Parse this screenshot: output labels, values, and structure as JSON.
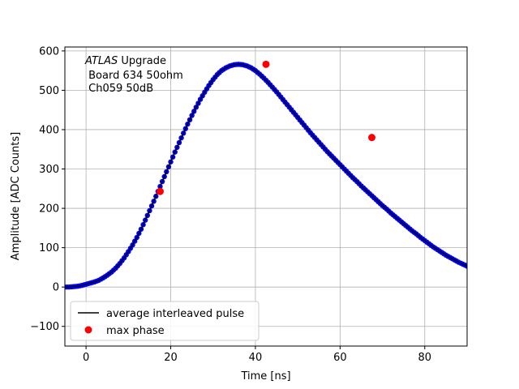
{
  "chart_data": {
    "type": "scatter",
    "title": "",
    "xlabel": "Time [ns]",
    "ylabel": "Amplitude [ADC Counts]",
    "xlim": [
      -5,
      90
    ],
    "ylim": [
      -150,
      610
    ],
    "xticks": [
      0,
      20,
      40,
      60,
      80
    ],
    "yticks": [
      -100,
      0,
      100,
      200,
      300,
      400,
      500,
      600
    ],
    "grid": true,
    "annotation": {
      "line1_italic": "ATLAS",
      "line1_rest": " Upgrade",
      "line2": " Board 634 50ohm",
      "line3": " Ch059 50dB"
    },
    "legend": {
      "placement": "lower-left",
      "entries": [
        {
          "label": "average interleaved pulse",
          "kind": "line",
          "color": "#000000"
        },
        {
          "label": "max phase",
          "kind": "marker",
          "color": "#ff0000"
        }
      ]
    },
    "series": [
      {
        "kind": "points",
        "color": "#0000ff",
        "x": [
          -5,
          -4,
          -3,
          -2,
          -1,
          0,
          1,
          2,
          3,
          4,
          5,
          6,
          7,
          8,
          9,
          10,
          11,
          12,
          13,
          14,
          15,
          16,
          17,
          18,
          19,
          20,
          21,
          22,
          23,
          24,
          25,
          26,
          27,
          28,
          29,
          30,
          31,
          32,
          33,
          34,
          35,
          36,
          37,
          38,
          39,
          40,
          41,
          42,
          43,
          44,
          45,
          46,
          47,
          48,
          49,
          50,
          51,
          52,
          53,
          54,
          55,
          56,
          57,
          58,
          59,
          60,
          61,
          62,
          63,
          64,
          65,
          66,
          67,
          68,
          69,
          70,
          71,
          72,
          73,
          74,
          75,
          76,
          77,
          78,
          79,
          80,
          81,
          82,
          83,
          84,
          85,
          86,
          87,
          88,
          89,
          90
        ],
        "y": [
          0,
          0,
          1,
          2,
          4,
          7,
          10,
          13,
          17,
          23,
          30,
          38,
          48,
          60,
          74,
          90,
          107,
          126,
          147,
          170,
          194,
          218,
          243,
          268,
          293,
          318,
          343,
          367,
          391,
          414,
          436,
          457,
          477,
          495,
          512,
          527,
          540,
          550,
          557,
          562,
          565,
          566,
          565,
          562,
          557,
          550,
          541,
          531,
          520,
          508,
          496,
          483,
          470,
          457,
          444,
          431,
          418,
          405,
          392,
          380,
          368,
          356,
          344,
          333,
          322,
          311,
          300,
          289,
          278,
          268,
          257,
          247,
          237,
          227,
          217,
          207,
          198,
          188,
          179,
          170,
          161,
          152,
          143,
          135,
          126,
          118,
          110,
          102,
          95,
          88,
          81,
          75,
          69,
          63,
          58,
          53
        ]
      },
      {
        "kind": "line",
        "name": "average interleaved pulse",
        "color": "#000000",
        "x": [
          -5,
          -4,
          -3,
          -2,
          -1,
          0,
          1,
          2,
          3,
          4,
          5,
          6,
          7,
          8,
          9,
          10,
          11,
          12,
          13,
          14,
          15,
          16,
          17,
          18,
          19,
          20,
          21,
          22,
          23,
          24,
          25,
          26,
          27,
          28,
          29,
          30,
          31,
          32,
          33,
          34,
          35,
          36,
          37,
          38,
          39,
          40,
          41,
          42,
          43,
          44,
          45,
          46,
          47,
          48,
          49,
          50,
          51,
          52,
          53,
          54,
          55,
          56,
          57,
          58,
          59,
          60,
          61,
          62,
          63,
          64,
          65,
          66,
          67,
          68,
          69,
          70,
          71,
          72,
          73,
          74,
          75,
          76,
          77,
          78,
          79,
          80,
          81,
          82,
          83,
          84,
          85,
          86,
          87,
          88,
          89,
          90
        ],
        "y": [
          0,
          0,
          1,
          2,
          4,
          7,
          10,
          13,
          17,
          23,
          30,
          38,
          48,
          60,
          74,
          90,
          107,
          126,
          147,
          170,
          194,
          218,
          243,
          268,
          293,
          318,
          343,
          367,
          391,
          414,
          436,
          457,
          477,
          495,
          512,
          527,
          540,
          550,
          557,
          562,
          565,
          566,
          565,
          562,
          557,
          550,
          541,
          531,
          520,
          508,
          496,
          483,
          470,
          457,
          444,
          431,
          418,
          405,
          392,
          380,
          368,
          356,
          344,
          333,
          322,
          311,
          300,
          289,
          278,
          268,
          257,
          247,
          237,
          227,
          217,
          207,
          198,
          188,
          179,
          170,
          161,
          152,
          143,
          135,
          126,
          118,
          110,
          102,
          95,
          88,
          81,
          75,
          69,
          63,
          58,
          53
        ]
      },
      {
        "kind": "markers",
        "name": "max phase",
        "color": "#ff0000",
        "x": [
          17.5,
          42.5,
          67.5
        ],
        "y": [
          243,
          566,
          380
        ]
      }
    ]
  }
}
